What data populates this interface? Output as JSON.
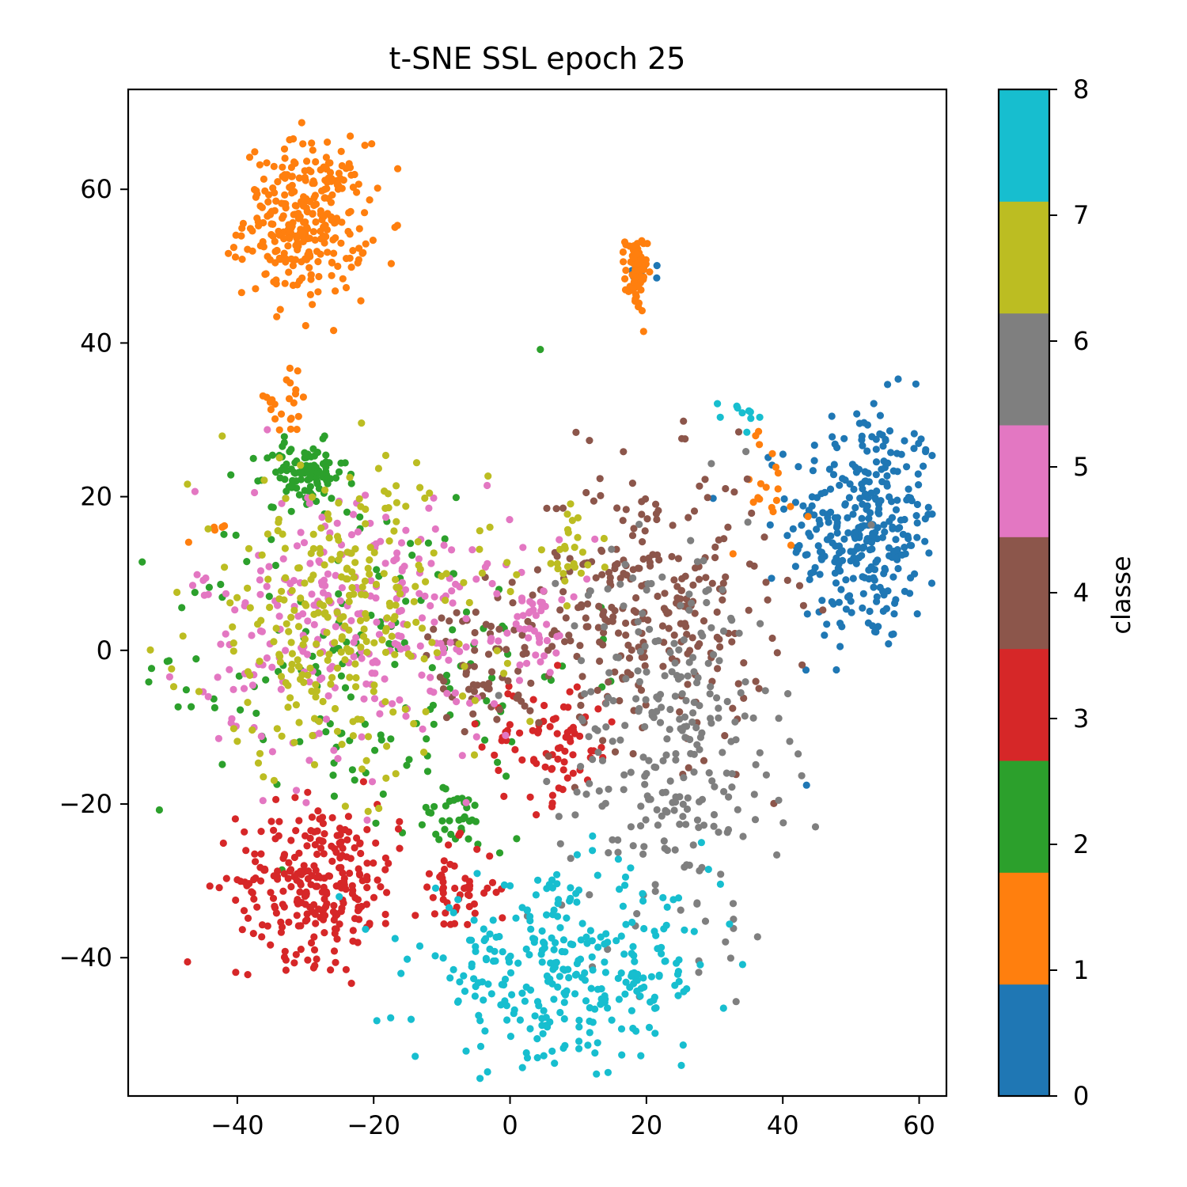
{
  "chart_data": {
    "type": "scatter",
    "title": "t-SNE SSL epoch 25",
    "xlabel": "",
    "ylabel": "",
    "xlim": [
      -56,
      64
    ],
    "ylim": [
      -58,
      73
    ],
    "x_ticks": [
      -40,
      -20,
      0,
      20,
      40,
      60
    ],
    "y_ticks": [
      -40,
      -20,
      0,
      20,
      40,
      60
    ],
    "x_tick_labels": [
      "−40",
      "−20",
      "0",
      "20",
      "40",
      "60"
    ],
    "y_tick_labels": [
      "−40",
      "−20",
      "0",
      "20",
      "40",
      "60"
    ],
    "grid": false,
    "colorbar": {
      "label": "classe",
      "range": [
        0,
        8
      ],
      "ticks": [
        "0",
        "1",
        "2",
        "3",
        "4",
        "5",
        "6",
        "7",
        "8"
      ],
      "colors": [
        "#1f77b4",
        "#ff7f0e",
        "#2ca02c",
        "#d62728",
        "#8c564b",
        "#e377c2",
        "#7f7f7f",
        "#bcbd22",
        "#17becf"
      ]
    },
    "clusters": [
      {
        "class": 0,
        "cx": 52,
        "cy": 16,
        "sx": 5.5,
        "sy": 8,
        "n": 330
      },
      {
        "class": 0,
        "cx": 20,
        "cy": 50,
        "sx": 1.0,
        "sy": 1.2,
        "n": 10
      },
      {
        "class": 1,
        "cx": -30,
        "cy": 56,
        "sx": 4.5,
        "sy": 5,
        "n": 300
      },
      {
        "class": 1,
        "cx": 18.5,
        "cy": 49,
        "sx": 0.8,
        "sy": 2.5,
        "n": 70
      },
      {
        "class": 1,
        "cx": -33,
        "cy": 32,
        "sx": 2.5,
        "sy": 2,
        "n": 22
      },
      {
        "class": 1,
        "cx": 38,
        "cy": 21,
        "sx": 3,
        "sy": 4,
        "n": 20
      },
      {
        "class": 1,
        "cx": -44,
        "cy": 16,
        "sx": 1.5,
        "sy": 1,
        "n": 6
      },
      {
        "class": 2,
        "cx": -30,
        "cy": 23,
        "sx": 3,
        "sy": 2,
        "n": 100
      },
      {
        "class": 2,
        "cx": -22,
        "cy": -2,
        "sx": 16,
        "sy": 12,
        "n": 170
      },
      {
        "class": 2,
        "cx": -8,
        "cy": -22,
        "sx": 3,
        "sy": 2,
        "n": 30
      },
      {
        "class": 3,
        "cx": -28,
        "cy": -30,
        "sx": 6,
        "sy": 5,
        "n": 270
      },
      {
        "class": 3,
        "cx": -8,
        "cy": -31,
        "sx": 3,
        "sy": 3,
        "n": 50
      },
      {
        "class": 3,
        "cx": 6,
        "cy": -12,
        "sx": 5,
        "sy": 4,
        "n": 80
      },
      {
        "class": 4,
        "cx": 20,
        "cy": 6,
        "sx": 9,
        "sy": 9,
        "n": 280
      },
      {
        "class": 4,
        "cx": -4,
        "cy": -2,
        "sx": 4,
        "sy": 4,
        "n": 60
      },
      {
        "class": 5,
        "cx": -22,
        "cy": 4,
        "sx": 12,
        "sy": 9,
        "n": 290
      },
      {
        "class": 5,
        "cx": 3,
        "cy": 3,
        "sx": 3,
        "sy": 3,
        "n": 35
      },
      {
        "class": 6,
        "cx": 24,
        "cy": -12,
        "sx": 8,
        "sy": 13,
        "n": 280
      },
      {
        "class": 7,
        "cx": -25,
        "cy": 4,
        "sx": 11,
        "sy": 10,
        "n": 290
      },
      {
        "class": 7,
        "cx": 9,
        "cy": 13,
        "sx": 2,
        "sy": 3,
        "n": 25
      },
      {
        "class": 8,
        "cx": 8,
        "cy": -42,
        "sx": 11,
        "sy": 6,
        "n": 320
      },
      {
        "class": 8,
        "cx": 34,
        "cy": 31,
        "sx": 2,
        "sy": 1,
        "n": 10
      }
    ]
  }
}
